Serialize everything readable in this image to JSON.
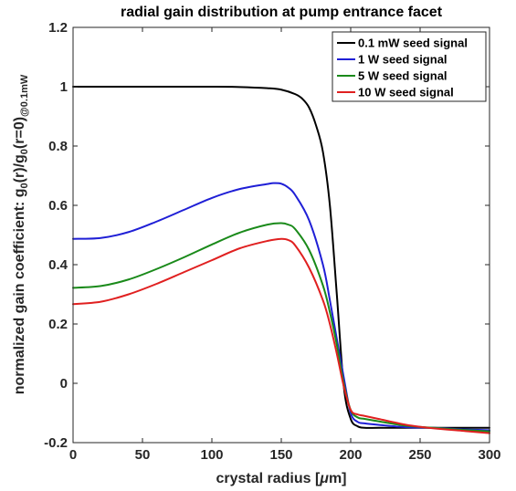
{
  "chart_data": {
    "type": "line",
    "title": "radial gain distribution at pump entrance facet",
    "xlabel": "crystal radius [μm]",
    "ylabel": "normalized gain coefficient: g0(r)/g0(r=0)@0.1mW",
    "ylabel_parts": {
      "pre": "normalized gain coefficient: g",
      "sub1": "0",
      "mid1": "(r)/g",
      "sub2": "0",
      "mid2": "(r=0)",
      "sub3": "@0.1mW"
    },
    "xlabel_parts": {
      "pre": "crystal radius [",
      "mu": "μ",
      "post": "m]"
    },
    "xlim": [
      0,
      300
    ],
    "ylim": [
      -0.2,
      1.2
    ],
    "xticks": [
      "0",
      "50",
      "100",
      "150",
      "200",
      "250",
      "300"
    ],
    "yticks": [
      "-0.2",
      "0",
      "0.2",
      "0.4",
      "0.6",
      "0.8",
      "1",
      "1.2"
    ],
    "legend_position": "top-right",
    "grid": false,
    "series": [
      {
        "name": "0.1 mW seed signal",
        "color": "#000000",
        "x": [
          0,
          20,
          40,
          60,
          80,
          100,
          120,
          140,
          150,
          160,
          165,
          170,
          175,
          180,
          185,
          190,
          195,
          200,
          205,
          210,
          220,
          240,
          260,
          280,
          300
        ],
        "y": [
          1.0,
          1.0,
          1.0,
          1.0,
          1.0,
          1.0,
          0.999,
          0.995,
          0.99,
          0.975,
          0.96,
          0.93,
          0.87,
          0.78,
          0.6,
          0.3,
          -0.01,
          -0.12,
          -0.145,
          -0.15,
          -0.15,
          -0.15,
          -0.15,
          -0.15,
          -0.15
        ]
      },
      {
        "name": "1 W seed signal",
        "color": "#1f1fd6",
        "x": [
          0,
          20,
          40,
          60,
          80,
          100,
          120,
          140,
          145,
          150,
          155,
          160,
          170,
          180,
          185,
          190,
          195,
          200,
          205,
          210,
          220,
          240,
          260,
          280,
          300
        ],
        "y": [
          0.487,
          0.49,
          0.51,
          0.545,
          0.585,
          0.625,
          0.655,
          0.672,
          0.675,
          0.673,
          0.66,
          0.635,
          0.55,
          0.4,
          0.28,
          0.15,
          0.02,
          -0.1,
          -0.13,
          -0.135,
          -0.14,
          -0.148,
          -0.15,
          -0.155,
          -0.158
        ]
      },
      {
        "name": "5 W seed signal",
        "color": "#1a8a1a",
        "x": [
          0,
          20,
          40,
          60,
          80,
          100,
          120,
          140,
          150,
          155,
          160,
          170,
          180,
          185,
          190,
          195,
          200,
          205,
          210,
          220,
          240,
          260,
          280,
          300
        ],
        "y": [
          0.322,
          0.328,
          0.35,
          0.385,
          0.425,
          0.468,
          0.508,
          0.535,
          0.54,
          0.535,
          0.52,
          0.45,
          0.33,
          0.24,
          0.13,
          0.0,
          -0.09,
          -0.115,
          -0.12,
          -0.128,
          -0.143,
          -0.15,
          -0.157,
          -0.162
        ]
      },
      {
        "name": "10 W seed signal",
        "color": "#e02020",
        "x": [
          0,
          20,
          40,
          60,
          80,
          100,
          120,
          140,
          150,
          155,
          160,
          170,
          180,
          185,
          190,
          195,
          200,
          205,
          210,
          220,
          240,
          260,
          280,
          300
        ],
        "y": [
          0.267,
          0.275,
          0.3,
          0.335,
          0.375,
          0.415,
          0.455,
          0.48,
          0.487,
          0.483,
          0.465,
          0.39,
          0.28,
          0.2,
          0.1,
          -0.01,
          -0.09,
          -0.105,
          -0.11,
          -0.12,
          -0.14,
          -0.152,
          -0.16,
          -0.168
        ]
      }
    ]
  }
}
